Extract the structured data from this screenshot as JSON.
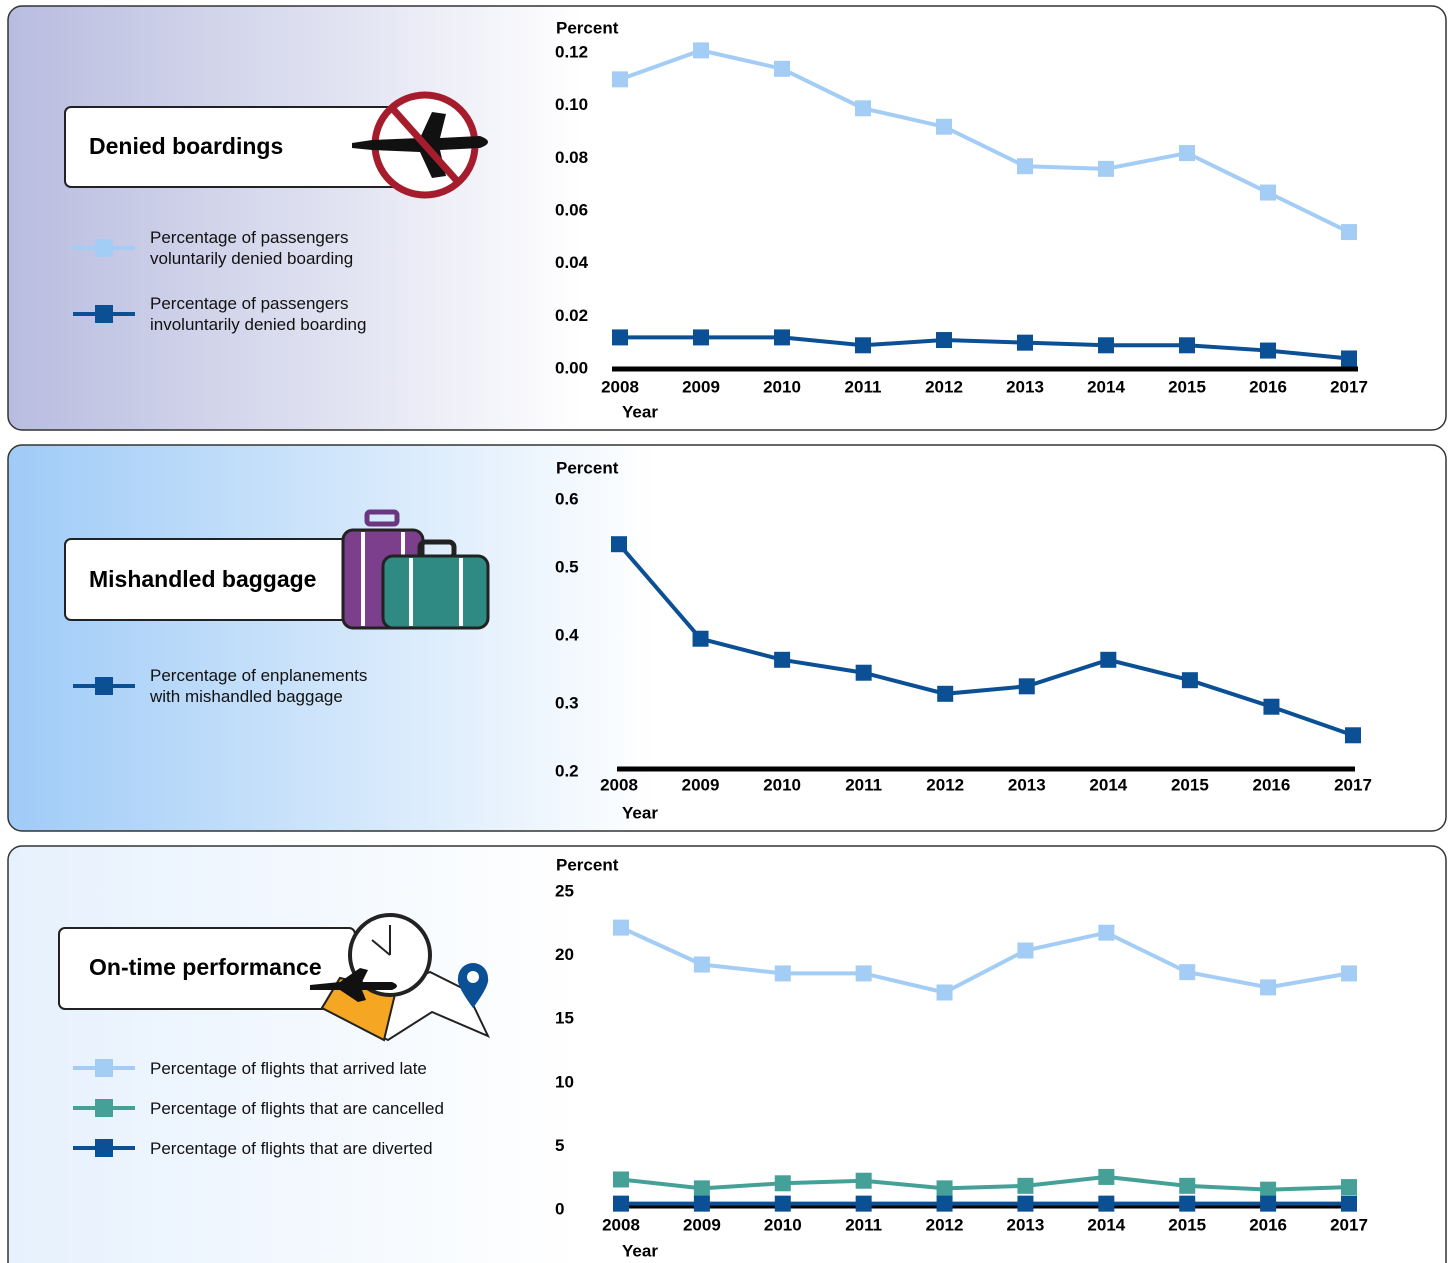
{
  "chart_data": [
    {
      "type": "line",
      "title": "Denied boardings",
      "y_label": "Percent",
      "x_label": "Year",
      "categories": [
        "2008",
        "2009",
        "2010",
        "2011",
        "2012",
        "2013",
        "2014",
        "2015",
        "2016",
        "2017"
      ],
      "series": [
        {
          "name": "Percentage of passengers voluntarily denied boarding",
          "color": "#a4cdf6",
          "values": [
            0.11,
            0.121,
            0.114,
            0.099,
            0.092,
            0.077,
            0.076,
            0.082,
            0.067,
            0.052
          ]
        },
        {
          "name": "Percentage of passengers involuntarily denied boarding",
          "color": "#0b4f94",
          "values": [
            0.012,
            0.012,
            0.012,
            0.009,
            0.011,
            0.01,
            0.009,
            0.009,
            0.007,
            0.004
          ]
        }
      ],
      "ylim": [
        0,
        0.12
      ],
      "yticks": [
        {
          "value": 0,
          "label": "0.00"
        },
        0.02,
        0.04,
        0.06,
        0.08,
        {
          "value": 0.1,
          "label": "0.10"
        },
        0.12
      ],
      "grid": false
    },
    {
      "type": "line",
      "title": "Mishandled baggage",
      "y_label": "Percent",
      "x_label": "Year",
      "categories": [
        "2008",
        "2009",
        "2010",
        "2011",
        "2012",
        "2013",
        "2014",
        "2015",
        "2016",
        "2017"
      ],
      "series": [
        {
          "name": "Percentage of enplanements with mishandled baggage",
          "color": "#0b4f94",
          "values": [
            0.535,
            0.396,
            0.365,
            0.346,
            0.315,
            0.326,
            0.365,
            0.335,
            0.296,
            0.254
          ]
        }
      ],
      "ylim": [
        0.2,
        0.6
      ],
      "yticks": [
        0.2,
        0.3,
        0.4,
        0.5,
        0.6
      ],
      "grid": false
    },
    {
      "type": "line",
      "title": "On-time performance",
      "y_label": "Percent",
      "x_label": "Year",
      "categories": [
        "2008",
        "2009",
        "2010",
        "2011",
        "2012",
        "2013",
        "2014",
        "2015",
        "2016",
        "2017"
      ],
      "series": [
        {
          "name": "Percentage of flights that arrived late",
          "color": "#a4cdf6",
          "values": [
            22.2,
            19.3,
            18.6,
            18.6,
            17.1,
            20.4,
            21.8,
            18.7,
            17.5,
            18.6
          ]
        },
        {
          "name": "Percentage of flights that are cancelled",
          "color": "#45a097",
          "values": [
            2.4,
            1.7,
            2.1,
            2.3,
            1.7,
            1.9,
            2.6,
            1.9,
            1.6,
            1.8
          ]
        },
        {
          "name": "Percentage of flights that are diverted",
          "color": "#0b4f94",
          "values": [
            0.5,
            0.5,
            0.5,
            0.5,
            0.5,
            0.5,
            0.5,
            0.5,
            0.5,
            0.5
          ]
        }
      ],
      "ylim": [
        0,
        25
      ],
      "yticks": [
        0,
        5,
        10,
        15,
        20,
        25
      ],
      "grid": false
    }
  ]
}
